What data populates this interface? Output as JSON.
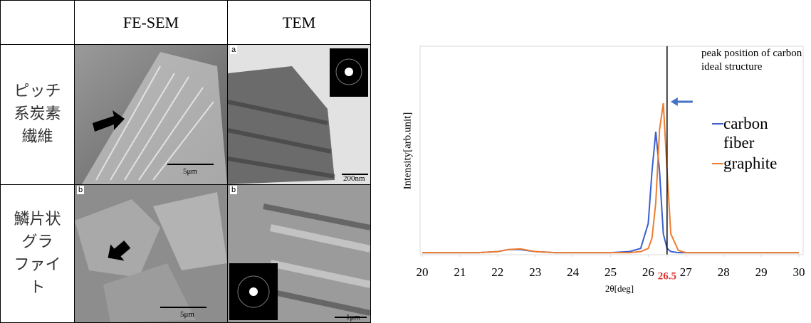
{
  "table": {
    "header": [
      "FE-SEM",
      "TEM"
    ],
    "rows": [
      {
        "label": [
          "ピッチ",
          "系炭素",
          "繊維"
        ],
        "sem": {
          "scale": "5μm"
        },
        "tem": {
          "tag": "a",
          "scale": "200nm"
        }
      },
      {
        "label": [
          "鱗片状",
          "グラ",
          "ファイ",
          "ト"
        ],
        "sem": {
          "tag": "b",
          "scale": "5μm"
        },
        "tem": {
          "tag": "b",
          "scale": "1μm"
        }
      }
    ]
  },
  "chart_data": {
    "type": "line",
    "xlabel": "2θ[deg]",
    "ylabel": "Intensity[arb.unit]",
    "x": [
      20,
      20.5,
      21,
      21.5,
      22,
      22.3,
      22.6,
      23,
      23.5,
      24,
      24.5,
      25,
      25.5,
      25.8,
      26,
      26.1,
      26.2,
      26.3,
      26.4,
      26.5,
      26.6,
      26.8,
      27,
      28,
      29,
      30
    ],
    "series": [
      {
        "name": "carbon fiber",
        "color": "#3a5fcd",
        "values": [
          1,
          1,
          1,
          1,
          1.5,
          2.5,
          2.5,
          1.5,
          1,
          1,
          1,
          1,
          1.5,
          3,
          15,
          40,
          59,
          40,
          10,
          3,
          1.5,
          1,
          1,
          1,
          1,
          1
        ]
      },
      {
        "name": "graphite",
        "color": "#ed7d31",
        "values": [
          1,
          1,
          1,
          1,
          1.5,
          2.5,
          2.8,
          1.5,
          1,
          1,
          1,
          1,
          1,
          1.5,
          3,
          8,
          25,
          60,
          72.7,
          40,
          10,
          2,
          1,
          1,
          1,
          1
        ]
      }
    ],
    "xlim": [
      20,
      30
    ],
    "ylim": [
      0,
      100
    ],
    "xticks": [
      20,
      21,
      22,
      23,
      24,
      25,
      26,
      26.5,
      27,
      28,
      29,
      30
    ],
    "vline": {
      "x": 26.5,
      "color": "#000000",
      "tick_color": "#e03030",
      "annotation": "peak position of carbon ideal structure",
      "arrow_color": "#4472c4"
    }
  }
}
